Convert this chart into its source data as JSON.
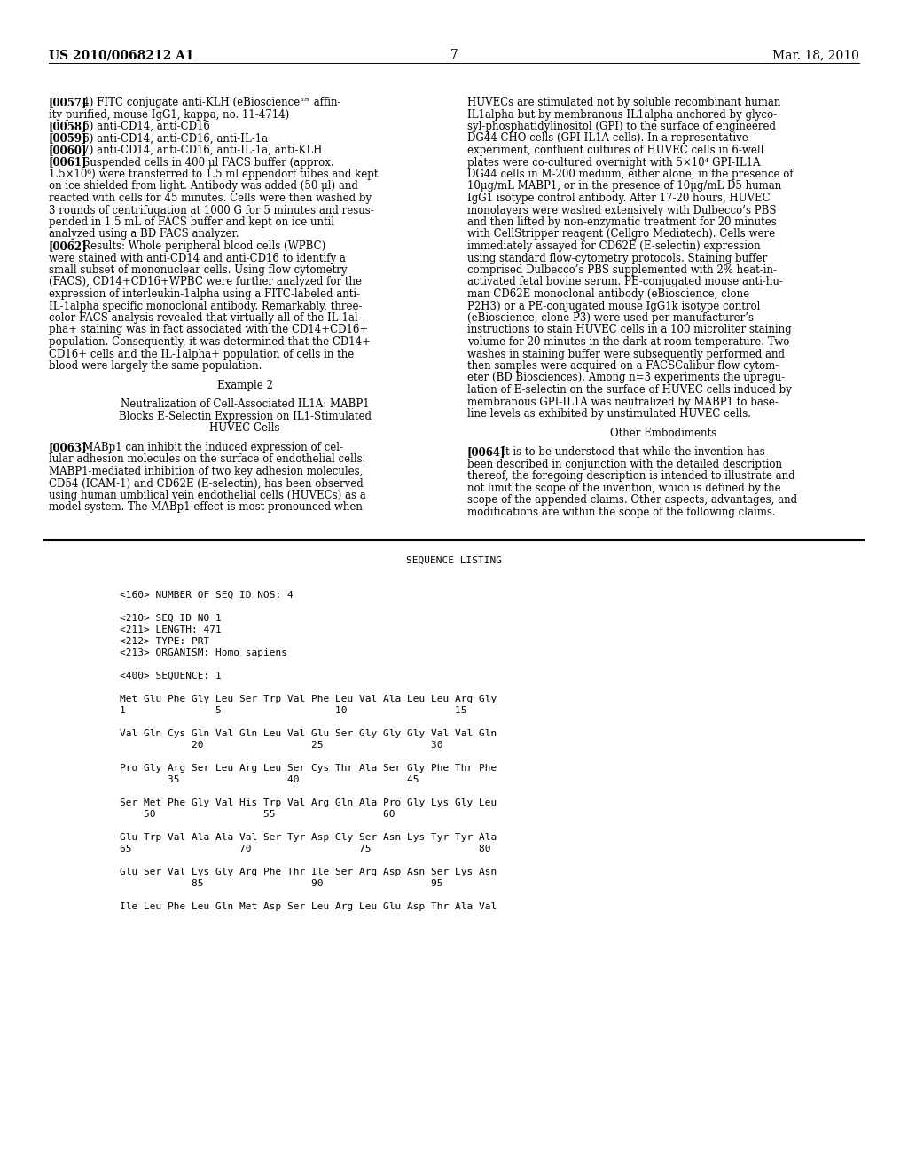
{
  "background_color": "#ffffff",
  "header_left": "US 2010/0068212 A1",
  "header_right": "Mar. 18, 2010",
  "page_number": "7",
  "left_col_lines": [
    {
      "bold": true,
      "text": "[0057]",
      "cont": "   4) FITC conjugate anti-KLH (eBioscience™ affin-"
    },
    {
      "text": "ity purified, mouse IgG1, kappa, no. 11-4714)"
    },
    {
      "bold": true,
      "text": "[0058]",
      "cont": "   5) anti-CD14, anti-CD16"
    },
    {
      "bold": true,
      "text": "[0059]",
      "cont": "   6) anti-CD14, anti-CD16, anti-IL-1a"
    },
    {
      "bold": true,
      "text": "[0060]",
      "cont": "   7) anti-CD14, anti-CD16, anti-IL-1a, anti-KLH"
    },
    {
      "bold": true,
      "text": "[0061]",
      "cont": "   Suspended cells in 400 μl FACS buffer (approx."
    },
    {
      "text": "1.5×10⁶) were transferred to 1.5 ml eppendorf tubes and kept"
    },
    {
      "text": "on ice shielded from light. Antibody was added (50 μl) and"
    },
    {
      "text": "reacted with cells for 45 minutes. Cells were then washed by"
    },
    {
      "text": "3 rounds of centrifugation at 1000 G for 5 minutes and resus-"
    },
    {
      "text": "pended in 1.5 mL of FACS buffer and kept on ice until"
    },
    {
      "text": "analyzed using a BD FACS analyzer."
    },
    {
      "bold": true,
      "text": "[0062]",
      "cont": "   Results: Whole peripheral blood cells (WPBC)"
    },
    {
      "text": "were stained with anti-CD14 and anti-CD16 to identify a"
    },
    {
      "text": "small subset of mononuclear cells. Using flow cytometry"
    },
    {
      "text": "(FACS), CD14+CD16+WPBC were further analyzed for the"
    },
    {
      "text": "expression of interleukin-1alpha using a FITC-labeled anti-"
    },
    {
      "text": "IL-1alpha specific monoclonal antibody. Remarkably, three-"
    },
    {
      "text": "color FACS analysis revealed that virtually all of the IL-1al-"
    },
    {
      "text": "pha+ staining was in fact associated with the CD14+CD16+"
    },
    {
      "text": "population. Consequently, it was determined that the CD14+"
    },
    {
      "text": "CD16+ cells and the IL-1alpha+ population of cells in the"
    },
    {
      "text": "blood were largely the same population."
    },
    {
      "blank": true
    },
    {
      "center": "Example 2"
    },
    {
      "blank": true
    },
    {
      "center": "Neutralization of Cell-Associated IL1A: MABP1"
    },
    {
      "center": "Blocks E-Selectin Expression on IL1-Stimulated"
    },
    {
      "center": "HUVEC Cells"
    },
    {
      "blank": true
    },
    {
      "bold": true,
      "text": "[0063]",
      "cont": "   MABp1 can inhibit the induced expression of cel-"
    },
    {
      "text": "lular adhesion molecules on the surface of endothelial cells."
    },
    {
      "text": "MABP1-mediated inhibition of two key adhesion molecules,"
    },
    {
      "text": "CD54 (ICAM-1) and CD62E (E-selectin), has been observed"
    },
    {
      "text": "using human umbilical vein endothelial cells (HUVECs) as a"
    },
    {
      "text": "model system. The MABp1 effect is most pronounced when"
    }
  ],
  "right_col_lines": [
    {
      "text": "HUVECs are stimulated not by soluble recombinant human"
    },
    {
      "text": "IL1alpha but by membranous IL1alpha anchored by glyco-"
    },
    {
      "text": "syl-phosphatidylinositol (GPI) to the surface of engineered"
    },
    {
      "text": "DG44 CHO cells (GPI-IL1A cells). In a representative"
    },
    {
      "text": "experiment, confluent cultures of HUVEC cells in 6-well"
    },
    {
      "text": "plates were co-cultured overnight with 5×10⁴ GPI-IL1A"
    },
    {
      "text": "DG44 cells in M-200 medium, either alone, in the presence of"
    },
    {
      "text": "10μg/mL MABP1, or in the presence of 10μg/mL D5 human"
    },
    {
      "text": "IgG1 isotype control antibody. After 17-20 hours, HUVEC"
    },
    {
      "text": "monolayers were washed extensively with Dulbecco’s PBS"
    },
    {
      "text": "and then lifted by non-enzymatic treatment for 20 minutes"
    },
    {
      "text": "with CellStripper reagent (Cellgro Mediatech). Cells were"
    },
    {
      "text": "immediately assayed for CD62E (E-selectin) expression"
    },
    {
      "text": "using standard flow-cytometry protocols. Staining buffer"
    },
    {
      "text": "comprised Dulbecco’s PBS supplemented with 2% heat-in-"
    },
    {
      "text": "activated fetal bovine serum. PE-conjugated mouse anti-hu-"
    },
    {
      "text": "man CD62E monoclonal antibody (eBioscience, clone"
    },
    {
      "text": "P2H3) or a PE-conjugated mouse IgG1k isotype control"
    },
    {
      "text": "(eBioscience, clone P3) were used per manufacturer’s"
    },
    {
      "text": "instructions to stain HUVEC cells in a 100 microliter staining"
    },
    {
      "text": "volume for 20 minutes in the dark at room temperature. Two"
    },
    {
      "text": "washes in staining buffer were subsequently performed and"
    },
    {
      "text": "then samples were acquired on a FACSCalibur flow cytom-"
    },
    {
      "text": "eter (BD Biosciences). Among n=3 experiments the upregu-"
    },
    {
      "text": "lation of E-selectin on the surface of HUVEC cells induced by"
    },
    {
      "text": "membranous GPI-IL1A was neutralized by MABP1 to base-"
    },
    {
      "text": "line levels as exhibited by unstimulated HUVEC cells."
    },
    {
      "blank": true
    },
    {
      "center": "Other Embodiments"
    },
    {
      "blank": true
    },
    {
      "bold": true,
      "text": "[0064]",
      "cont": "   It is to be understood that while the invention has"
    },
    {
      "text": "been described in conjunction with the detailed description"
    },
    {
      "text": "thereof, the foregoing description is intended to illustrate and"
    },
    {
      "text": "not limit the scope of the invention, which is defined by the"
    },
    {
      "text": "scope of the appended claims. Other aspects, advantages, and"
    },
    {
      "text": "modifications are within the scope of the following claims."
    }
  ],
  "sequence_lines": [
    "",
    "<160> NUMBER OF SEQ ID NOS: 4",
    "",
    "<210> SEQ ID NO 1",
    "<211> LENGTH: 471",
    "<212> TYPE: PRT",
    "<213> ORGANISM: Homo sapiens",
    "",
    "<400> SEQUENCE: 1",
    "",
    "Met Glu Phe Gly Leu Ser Trp Val Phe Leu Val Ala Leu Leu Arg Gly",
    "1               5                   10                  15",
    "",
    "Val Gln Cys Gln Val Gln Leu Val Glu Ser Gly Gly Gly Val Val Gln",
    "            20                  25                  30",
    "",
    "Pro Gly Arg Ser Leu Arg Leu Ser Cys Thr Ala Ser Gly Phe Thr Phe",
    "        35                  40                  45",
    "",
    "Ser Met Phe Gly Val His Trp Val Arg Gln Ala Pro Gly Lys Gly Leu",
    "    50                  55                  60",
    "",
    "Glu Trp Val Ala Ala Val Ser Tyr Asp Gly Ser Asn Lys Tyr Tyr Ala",
    "65                  70                  75                  80",
    "",
    "Glu Ser Val Lys Gly Arg Phe Thr Ile Ser Arg Asp Asn Ser Lys Asn",
    "            85                  90                  95",
    "",
    "Ile Leu Phe Leu Gln Met Asp Ser Leu Arg Leu Glu Asp Thr Ala Val"
  ]
}
